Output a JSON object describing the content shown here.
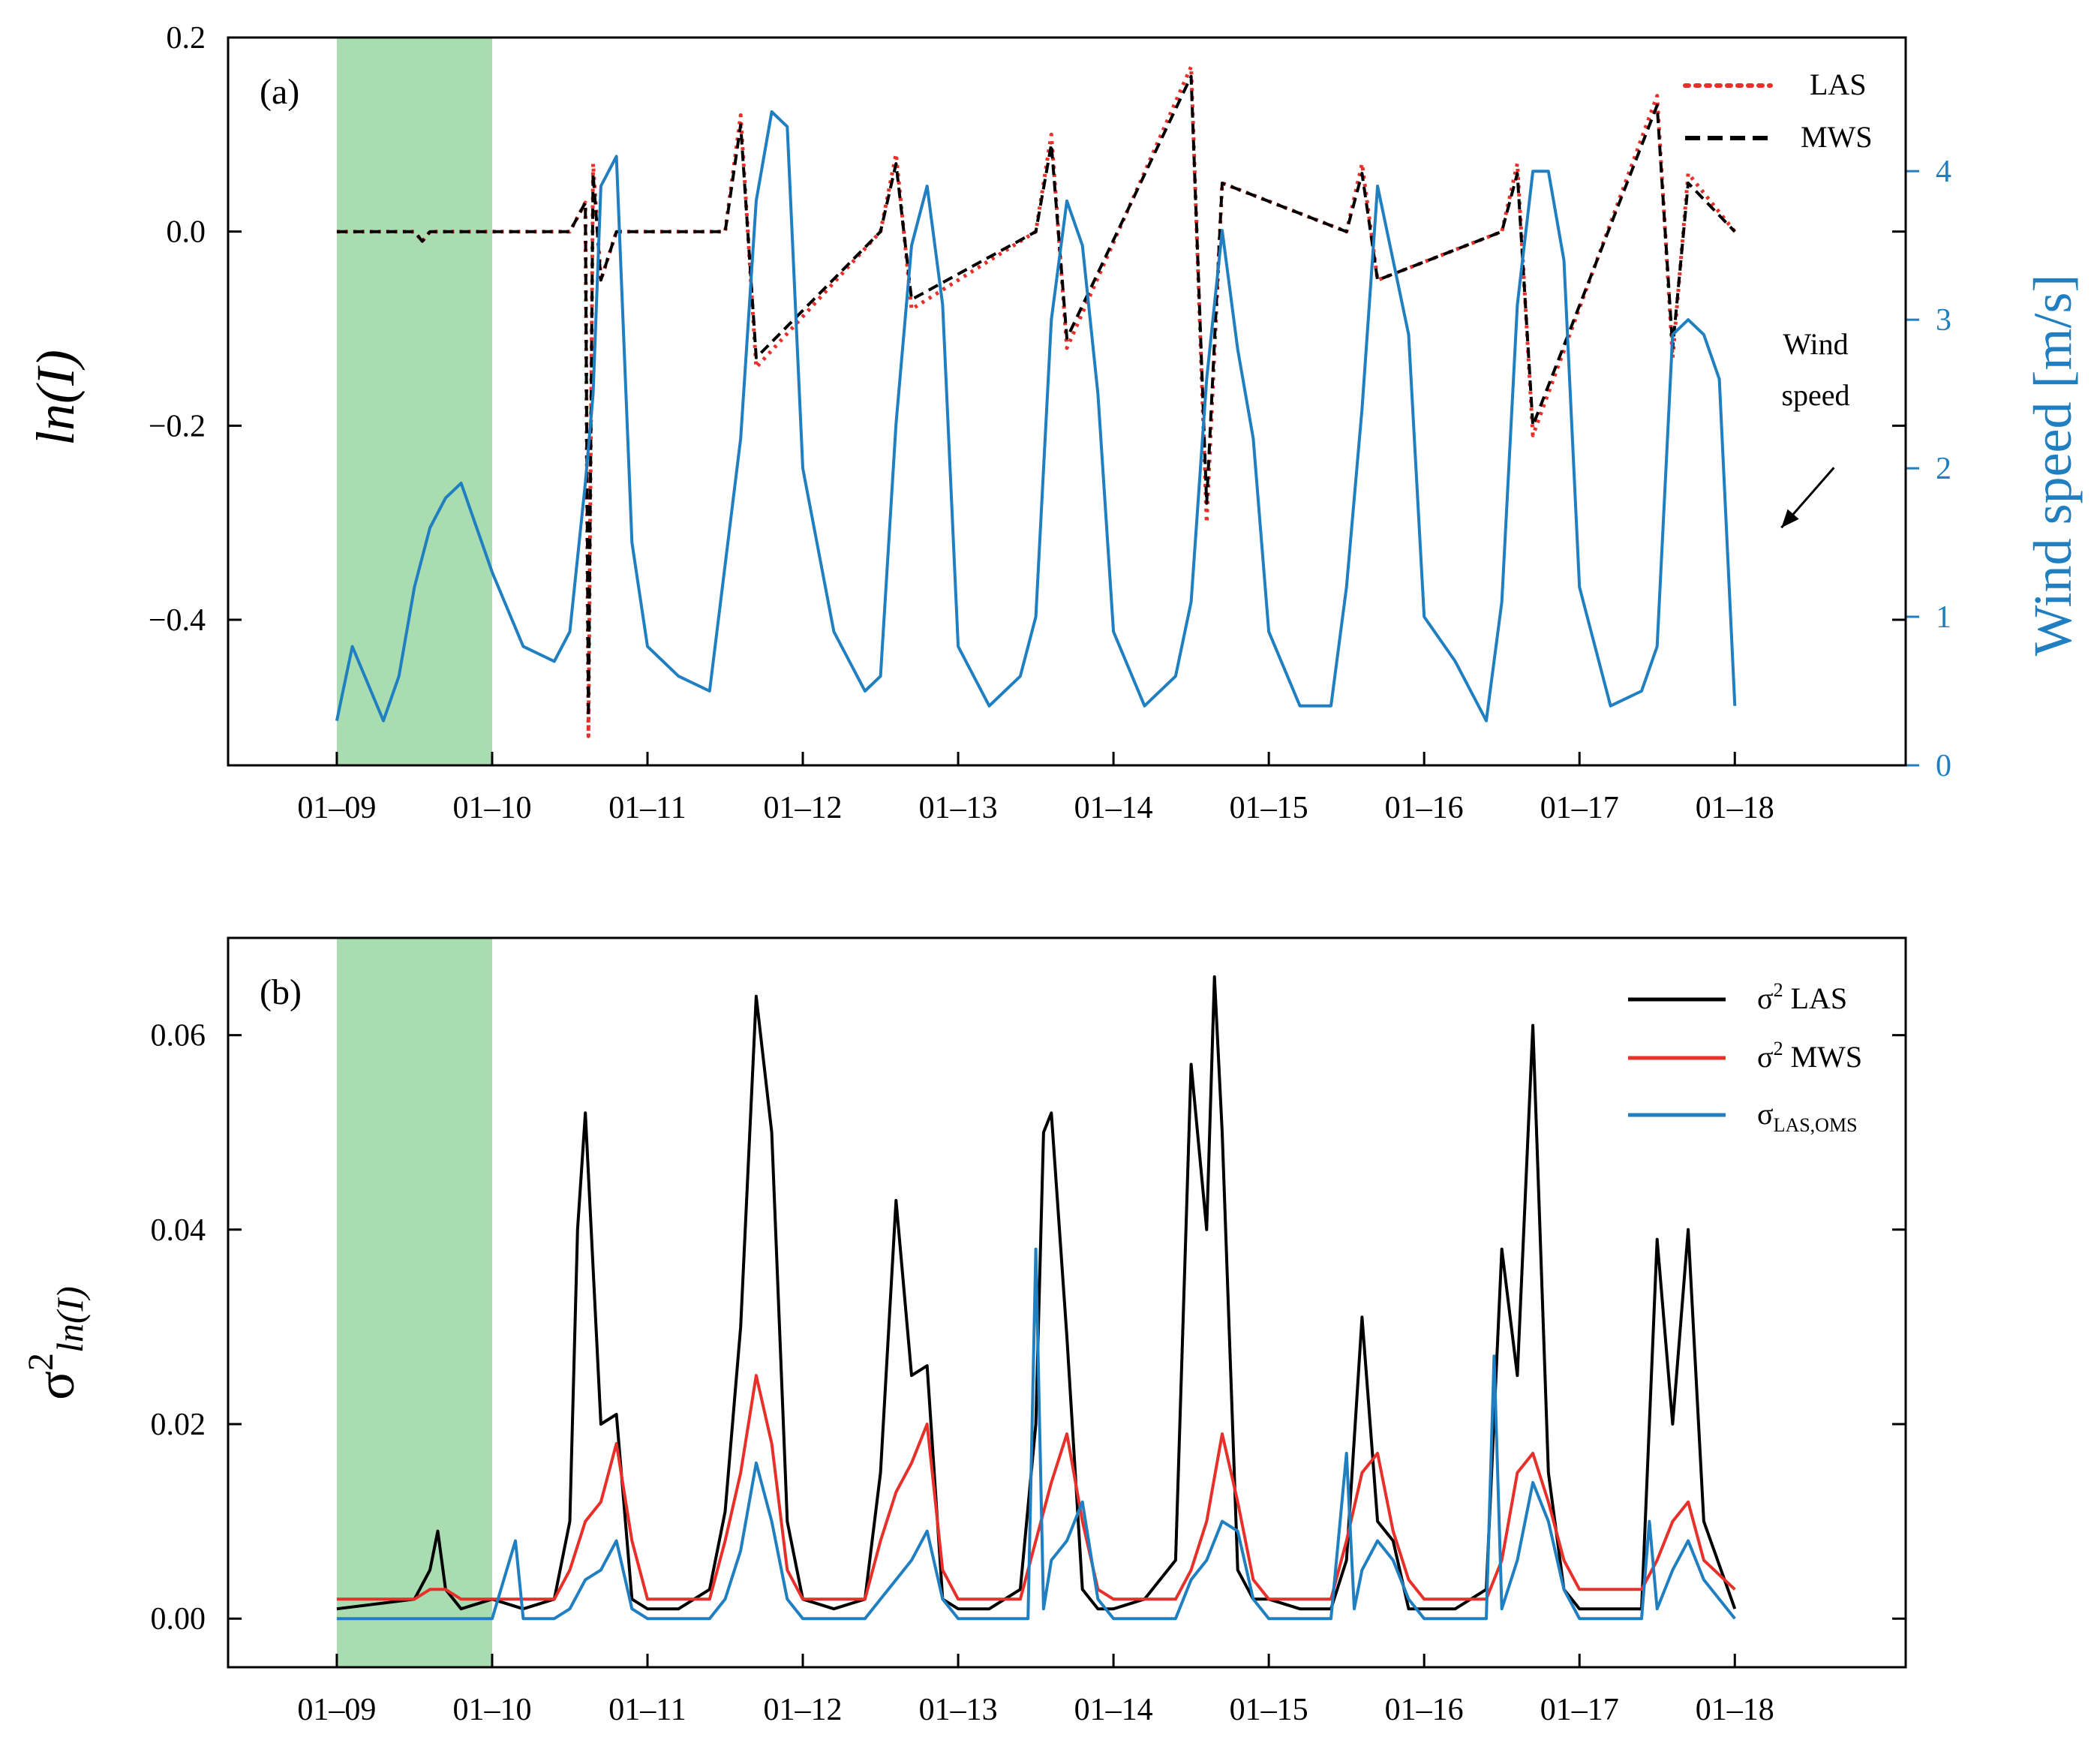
{
  "chart_data": [
    {
      "panel": "a",
      "panel_label": "(a)",
      "type": "line",
      "ylabel": "ln(I)",
      "ylabel_right": "Wind speed [m/s]",
      "ylim": [
        -0.55,
        0.2
      ],
      "ylim_right": [
        0,
        4.9
      ],
      "yticks": [
        0.2,
        0.0,
        -0.2,
        -0.4
      ],
      "yticks_labels": [
        "0.2",
        "0.0",
        "−0.2",
        "−0.4"
      ],
      "yticks_right": [
        0,
        1,
        2,
        3,
        4
      ],
      "xlim": [
        -0.7,
        10.1
      ],
      "xticks": [
        0,
        1,
        2,
        3,
        4,
        5,
        6,
        7,
        8,
        9
      ],
      "xtick_labels": [
        "01–09",
        "01–10",
        "01–11",
        "01–12",
        "01–13",
        "01–14",
        "01–15",
        "01–16",
        "01–17",
        "01–18"
      ],
      "shaded_region": {
        "x": [
          0,
          1
        ],
        "color": "#a9dcb0"
      },
      "legend": [
        {
          "label": "LAS",
          "color": "#e8302a",
          "style": "dotted"
        },
        {
          "label": "MWS",
          "color": "#000000",
          "style": "dashed"
        }
      ],
      "annotation": {
        "line1": "Wind",
        "line2": "speed",
        "points_to": "wind speed series",
        "x": 9.3,
        "y_right": 1.6
      },
      "colors": {
        "las": "#e8302a",
        "mws": "#000000",
        "wind": "#1f7fc0"
      },
      "series": [
        {
          "name": "LAS",
          "axis": "left",
          "x": [
            0,
            0.5,
            0.55,
            0.6,
            1,
            1.5,
            1.6,
            1.62,
            1.65,
            1.7,
            1.8,
            2.5,
            2.6,
            2.7,
            3.5,
            3.6,
            3.7,
            4.5,
            4.6,
            4.7,
            5.5,
            5.6,
            5.7,
            6.5,
            6.6,
            6.7,
            7.5,
            7.6,
            7.7,
            8.5,
            8.6,
            8.7,
            9
          ],
          "y": [
            0,
            0,
            -0.01,
            0,
            0,
            0,
            0.03,
            -0.52,
            0.07,
            -0.05,
            0,
            0,
            0.12,
            -0.14,
            0,
            0.08,
            -0.08,
            0,
            0.1,
            -0.12,
            0.17,
            -0.3,
            0.05,
            0,
            0.07,
            -0.05,
            0,
            0.07,
            -0.21,
            0.14,
            -0.13,
            0.06,
            0
          ]
        },
        {
          "name": "MWS",
          "axis": "left",
          "x": [
            0,
            0.5,
            0.55,
            0.6,
            1,
            1.5,
            1.6,
            1.62,
            1.65,
            1.7,
            1.8,
            2.5,
            2.6,
            2.7,
            3.5,
            3.6,
            3.7,
            4.5,
            4.6,
            4.7,
            5.5,
            5.6,
            5.7,
            6.5,
            6.6,
            6.7,
            7.5,
            7.6,
            7.7,
            8.5,
            8.6,
            8.7,
            9
          ],
          "y": [
            0,
            0,
            -0.01,
            0,
            0,
            0,
            0.03,
            -0.5,
            0.06,
            -0.05,
            0,
            0,
            0.11,
            -0.13,
            0,
            0.07,
            -0.07,
            0,
            0.09,
            -0.11,
            0.16,
            -0.28,
            0.05,
            0,
            0.06,
            -0.05,
            0,
            0.06,
            -0.2,
            0.13,
            -0.12,
            0.05,
            0
          ]
        },
        {
          "name": "Wind speed",
          "axis": "right",
          "x": [
            0,
            0.1,
            0.3,
            0.4,
            0.5,
            0.6,
            0.7,
            0.8,
            0.9,
            1,
            1.2,
            1.4,
            1.5,
            1.6,
            1.65,
            1.7,
            1.8,
            1.9,
            2,
            2.2,
            2.4,
            2.6,
            2.7,
            2.8,
            2.9,
            3,
            3.2,
            3.4,
            3.5,
            3.6,
            3.7,
            3.8,
            3.9,
            4,
            4.2,
            4.4,
            4.5,
            4.6,
            4.7,
            4.8,
            4.9,
            5,
            5.2,
            5.4,
            5.5,
            5.6,
            5.7,
            5.8,
            5.9,
            6,
            6.2,
            6.4,
            6.5,
            6.6,
            6.7,
            6.8,
            6.9,
            7,
            7.2,
            7.4,
            7.5,
            7.6,
            7.7,
            7.8,
            7.9,
            8,
            8.2,
            8.4,
            8.5,
            8.6,
            8.7,
            8.8,
            8.9,
            9
          ],
          "y": [
            0.3,
            0.8,
            0.3,
            0.6,
            1.2,
            1.6,
            1.8,
            1.9,
            1.6,
            1.3,
            0.8,
            0.7,
            0.9,
            1.9,
            2.5,
            3.9,
            4.1,
            1.5,
            0.8,
            0.6,
            0.5,
            2.2,
            3.8,
            4.4,
            4.3,
            2.0,
            0.9,
            0.5,
            0.6,
            2.3,
            3.5,
            3.9,
            3.1,
            0.8,
            0.4,
            0.6,
            1.0,
            3.0,
            3.8,
            3.5,
            2.5,
            0.9,
            0.4,
            0.6,
            1.1,
            2.6,
            3.6,
            2.8,
            2.2,
            0.9,
            0.4,
            0.4,
            1.2,
            2.4,
            3.9,
            3.4,
            2.9,
            1.0,
            0.7,
            0.3,
            1.1,
            3.1,
            4.0,
            4.0,
            3.4,
            1.2,
            0.4,
            0.5,
            0.8,
            2.9,
            3.0,
            2.9,
            2.6,
            0.4
          ]
        }
      ]
    },
    {
      "panel": "b",
      "panel_label": "(b)",
      "type": "line",
      "ylabel_main": "σ",
      "ylabel_sup": "2",
      "ylabel_sub": "ln(I)",
      "ylim": [
        -0.005,
        0.07
      ],
      "yticks": [
        0.0,
        0.02,
        0.04,
        0.06
      ],
      "yticks_labels": [
        "0.00",
        "0.02",
        "0.04",
        "0.06"
      ],
      "xlim": [
        -0.7,
        10.1
      ],
      "xticks": [
        0,
        1,
        2,
        3,
        4,
        5,
        6,
        7,
        8,
        9
      ],
      "xtick_labels": [
        "01–09",
        "01–10",
        "01–11",
        "01–12",
        "01–13",
        "01–14",
        "01–15",
        "01–16",
        "01–17",
        "01–18"
      ],
      "shaded_region": {
        "x": [
          0,
          1
        ],
        "color": "#a9dcb0"
      },
      "legend": [
        {
          "main": "σ",
          "sup": "2",
          "text": " LAS",
          "color": "#000000"
        },
        {
          "main": "σ",
          "sup": "2",
          "text": " MWS",
          "color": "#e8302a"
        },
        {
          "main": "σ",
          "sub": "LAS,OMS",
          "color": "#1f7fc0"
        }
      ],
      "colors": {
        "las": "#000000",
        "mws": "#e8302a",
        "cov": "#1f7fc0"
      },
      "series": [
        {
          "name": "σ² LAS",
          "x": [
            0,
            0.5,
            0.6,
            0.65,
            0.7,
            0.8,
            1,
            1.2,
            1.4,
            1.5,
            1.55,
            1.6,
            1.7,
            1.8,
            1.9,
            2,
            2.2,
            2.4,
            2.5,
            2.6,
            2.7,
            2.8,
            2.9,
            3,
            3.2,
            3.4,
            3.5,
            3.6,
            3.7,
            3.8,
            3.9,
            4,
            4.2,
            4.4,
            4.5,
            4.55,
            4.6,
            4.7,
            4.8,
            4.9,
            5,
            5.2,
            5.4,
            5.5,
            5.6,
            5.65,
            5.7,
            5.8,
            5.9,
            6,
            6.2,
            6.4,
            6.5,
            6.6,
            6.7,
            6.8,
            6.9,
            7,
            7.2,
            7.4,
            7.5,
            7.6,
            7.7,
            7.8,
            7.9,
            8,
            8.2,
            8.4,
            8.5,
            8.6,
            8.7,
            8.8,
            9
          ],
          "y": [
            0.001,
            0.002,
            0.005,
            0.009,
            0.003,
            0.001,
            0.002,
            0.001,
            0.002,
            0.01,
            0.04,
            0.052,
            0.02,
            0.021,
            0.002,
            0.001,
            0.001,
            0.003,
            0.011,
            0.03,
            0.064,
            0.05,
            0.01,
            0.002,
            0.001,
            0.002,
            0.015,
            0.043,
            0.025,
            0.026,
            0.002,
            0.001,
            0.001,
            0.003,
            0.02,
            0.05,
            0.052,
            0.029,
            0.003,
            0.001,
            0.001,
            0.002,
            0.006,
            0.057,
            0.04,
            0.066,
            0.05,
            0.005,
            0.002,
            0.002,
            0.001,
            0.001,
            0.006,
            0.031,
            0.01,
            0.008,
            0.001,
            0.001,
            0.001,
            0.003,
            0.038,
            0.025,
            0.061,
            0.015,
            0.003,
            0.001,
            0.001,
            0.001,
            0.039,
            0.02,
            0.04,
            0.01,
            0.001
          ]
        },
        {
          "name": "σ² MWS",
          "x": [
            0,
            0.5,
            0.6,
            0.7,
            0.8,
            1,
            1.4,
            1.5,
            1.6,
            1.7,
            1.8,
            1.9,
            2,
            2.4,
            2.5,
            2.6,
            2.7,
            2.8,
            2.9,
            3,
            3.4,
            3.5,
            3.6,
            3.7,
            3.8,
            3.9,
            4,
            4.4,
            4.5,
            4.6,
            4.7,
            4.8,
            4.9,
            5,
            5.4,
            5.5,
            5.6,
            5.7,
            5.8,
            5.9,
            6,
            6.4,
            6.5,
            6.6,
            6.7,
            6.8,
            6.9,
            7,
            7.4,
            7.5,
            7.6,
            7.7,
            7.8,
            7.9,
            8,
            8.4,
            8.5,
            8.6,
            8.7,
            8.8,
            9
          ],
          "y": [
            0.002,
            0.002,
            0.003,
            0.003,
            0.002,
            0.002,
            0.002,
            0.005,
            0.01,
            0.012,
            0.018,
            0.008,
            0.002,
            0.002,
            0.008,
            0.015,
            0.025,
            0.018,
            0.005,
            0.002,
            0.002,
            0.008,
            0.013,
            0.016,
            0.02,
            0.005,
            0.002,
            0.002,
            0.008,
            0.014,
            0.019,
            0.01,
            0.003,
            0.002,
            0.002,
            0.005,
            0.01,
            0.019,
            0.012,
            0.004,
            0.002,
            0.002,
            0.008,
            0.015,
            0.017,
            0.009,
            0.004,
            0.002,
            0.002,
            0.006,
            0.015,
            0.017,
            0.012,
            0.006,
            0.003,
            0.003,
            0.006,
            0.01,
            0.012,
            0.006,
            0.003
          ]
        },
        {
          "name": "σ LAS,OMS",
          "x": [
            0,
            0.5,
            1,
            1.15,
            1.2,
            1.4,
            1.5,
            1.6,
            1.7,
            1.8,
            1.9,
            2,
            2.4,
            2.5,
            2.6,
            2.7,
            2.8,
            2.9,
            3,
            3.4,
            3.5,
            3.6,
            3.7,
            3.8,
            3.9,
            4,
            4.45,
            4.5,
            4.55,
            4.6,
            4.7,
            4.8,
            4.9,
            5,
            5.4,
            5.5,
            5.6,
            5.7,
            5.8,
            5.9,
            6,
            6.4,
            6.5,
            6.55,
            6.6,
            6.7,
            6.8,
            6.9,
            7,
            7.4,
            7.45,
            7.5,
            7.6,
            7.7,
            7.8,
            7.9,
            8,
            8.4,
            8.45,
            8.5,
            8.6,
            8.7,
            8.8,
            9
          ],
          "y": [
            0,
            0,
            0,
            0.008,
            0,
            0,
            0.001,
            0.004,
            0.005,
            0.008,
            0.001,
            0,
            0,
            0.002,
            0.007,
            0.016,
            0.01,
            0.002,
            0,
            0,
            0.002,
            0.004,
            0.006,
            0.009,
            0.002,
            0,
            0,
            0.038,
            0.001,
            0.006,
            0.008,
            0.012,
            0.002,
            0,
            0,
            0.004,
            0.006,
            0.01,
            0.009,
            0.002,
            0,
            0,
            0.017,
            0.001,
            0.005,
            0.008,
            0.006,
            0.002,
            0,
            0,
            0.027,
            0.001,
            0.006,
            0.014,
            0.01,
            0.003,
            0,
            0,
            0.01,
            0.001,
            0.005,
            0.008,
            0.004,
            0
          ]
        }
      ]
    }
  ]
}
